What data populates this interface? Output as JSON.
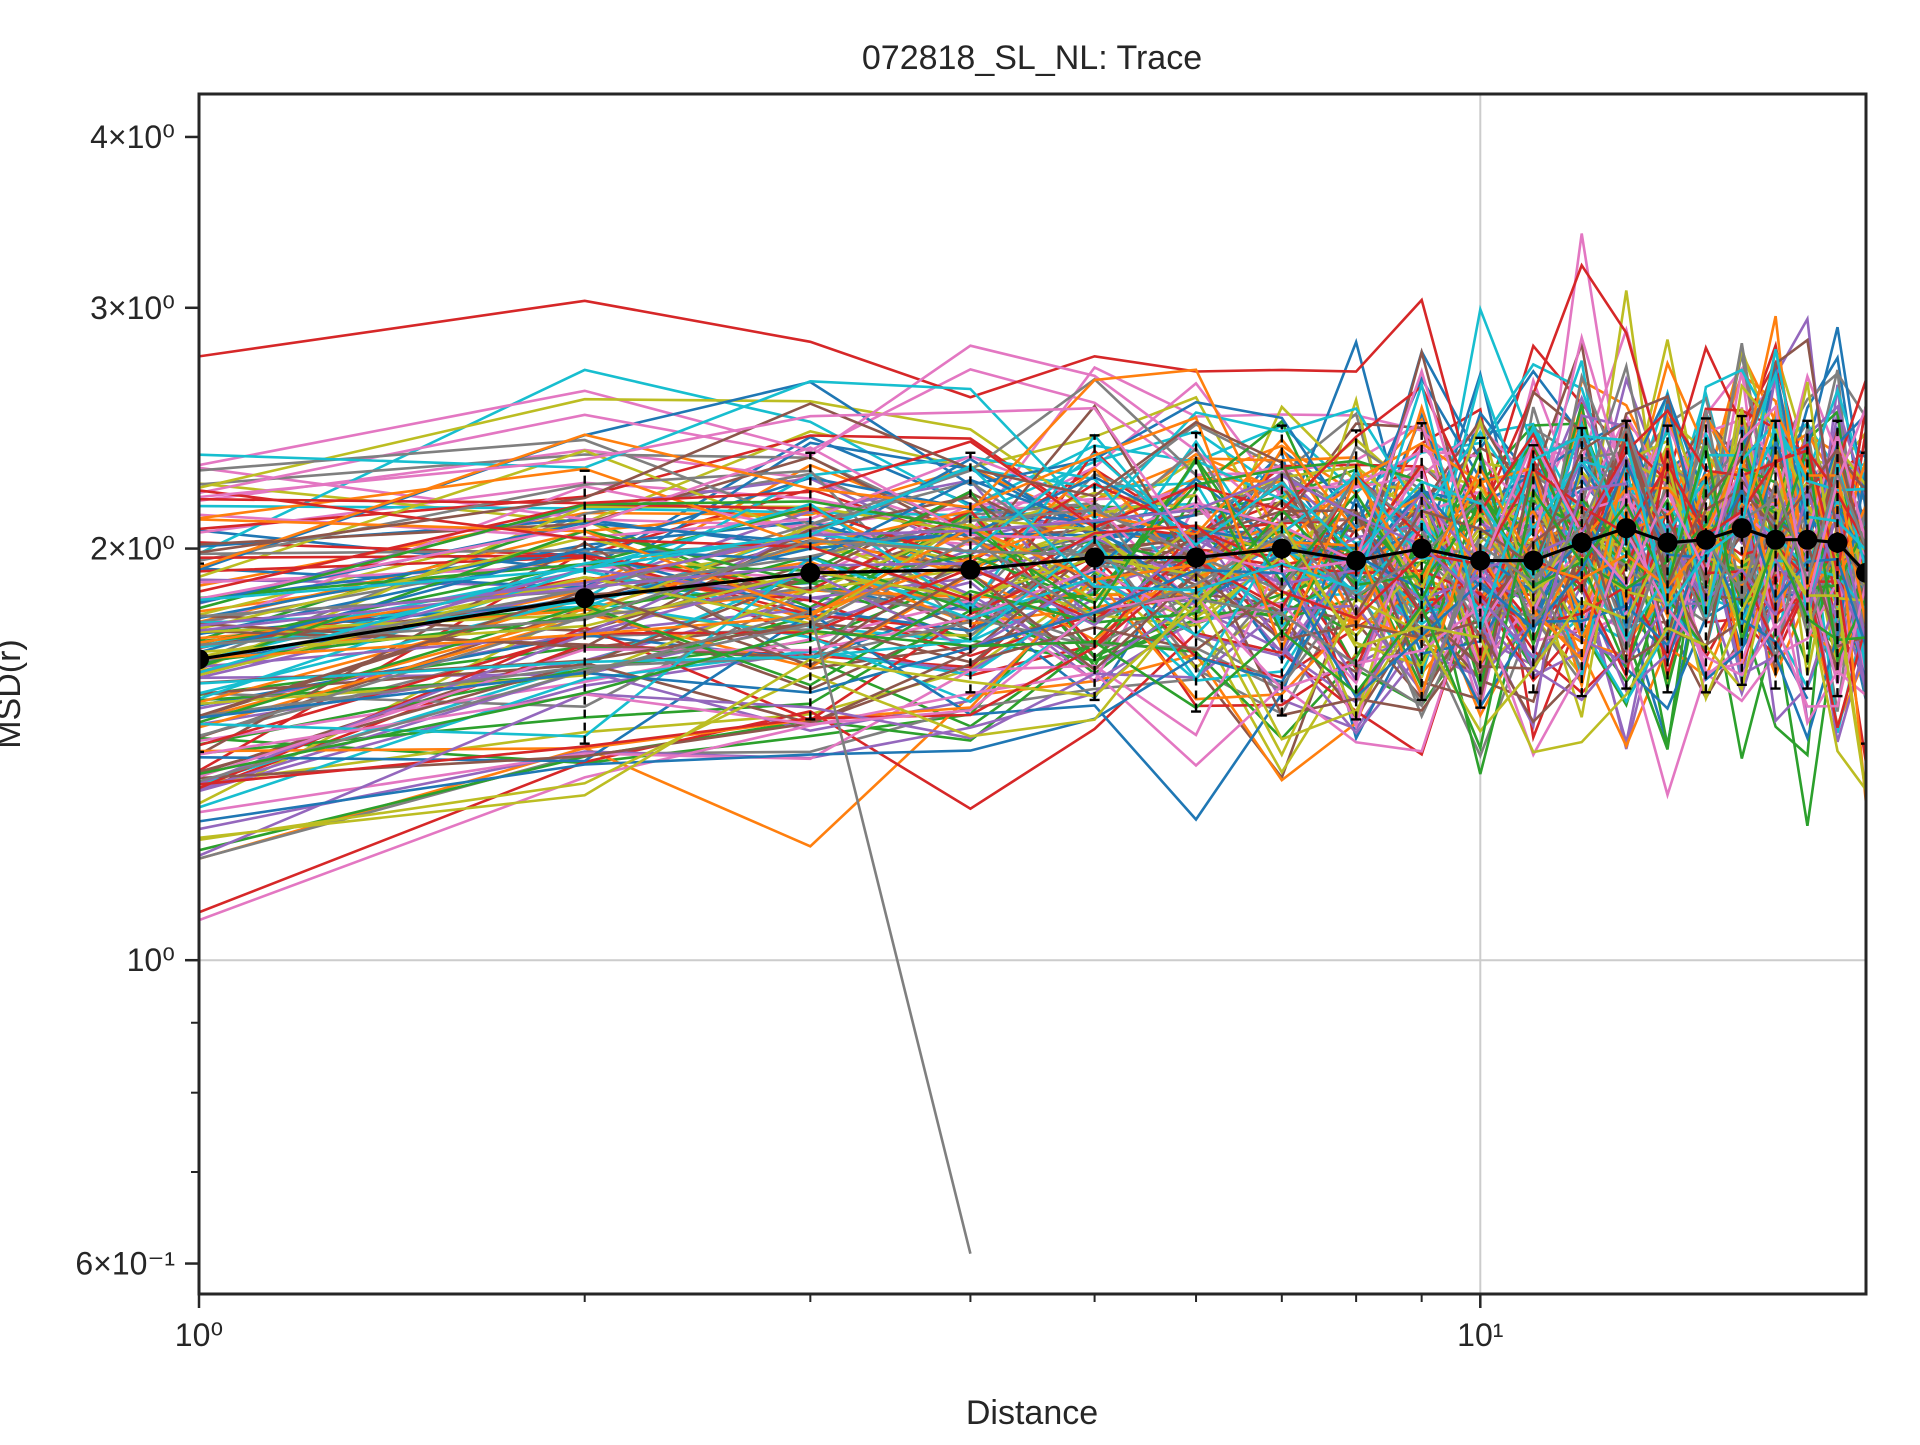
{
  "chart_data": {
    "type": "line",
    "title": "072818_SL_NL: Trace",
    "xlabel": "Distance",
    "ylabel": "MSD(r)",
    "x_scale": "log",
    "y_scale": "log",
    "xlim": [
      1,
      20
    ],
    "ylim": [
      0.57,
      4.3
    ],
    "grid": true,
    "x": [
      1,
      2,
      3,
      4,
      5,
      6,
      7,
      8,
      9,
      10,
      11,
      12,
      13,
      14,
      15,
      16,
      17,
      18,
      19,
      20
    ],
    "x_ticks": [
      {
        "value": 1,
        "label": "10⁰"
      },
      {
        "value": 10,
        "label": "10¹"
      }
    ],
    "y_ticks": [
      {
        "value": 0.6,
        "label": "6×10⁻¹"
      },
      {
        "value": 1,
        "label": "10⁰"
      },
      {
        "value": 2,
        "label": "2×10⁰"
      },
      {
        "value": 3,
        "label": "3×10⁰"
      },
      {
        "value": 4,
        "label": "4×10⁰"
      }
    ],
    "mean_series": {
      "y": [
        1.66,
        1.84,
        1.92,
        1.93,
        1.97,
        1.97,
        2.0,
        1.96,
        2.0,
        1.96,
        1.96,
        2.02,
        2.07,
        2.02,
        2.03,
        2.07,
        2.03,
        2.03,
        2.02,
        1.92
      ],
      "err_low": [
        1.42,
        1.44,
        1.5,
        1.57,
        1.55,
        1.52,
        1.51,
        1.5,
        1.55,
        1.53,
        1.57,
        1.56,
        1.58,
        1.57,
        1.57,
        1.59,
        1.58,
        1.58,
        1.56,
        1.44
      ],
      "err_high": [
        1.95,
        2.28,
        2.35,
        2.35,
        2.42,
        2.43,
        2.46,
        2.44,
        2.47,
        2.41,
        2.38,
        2.45,
        2.48,
        2.46,
        2.49,
        2.5,
        2.48,
        2.48,
        2.48,
        2.35
      ]
    },
    "trace_count": 150,
    "trace_seed": 72818,
    "palette": [
      "#1f77b4",
      "#ff7f0e",
      "#2ca02c",
      "#d62728",
      "#9467bd",
      "#8c564b",
      "#e377c2",
      "#7f7f7f",
      "#bcbd22",
      "#17becf"
    ],
    "grid_color": "#cccccc",
    "axes_color": "#262626",
    "mean_color": "#000000"
  }
}
